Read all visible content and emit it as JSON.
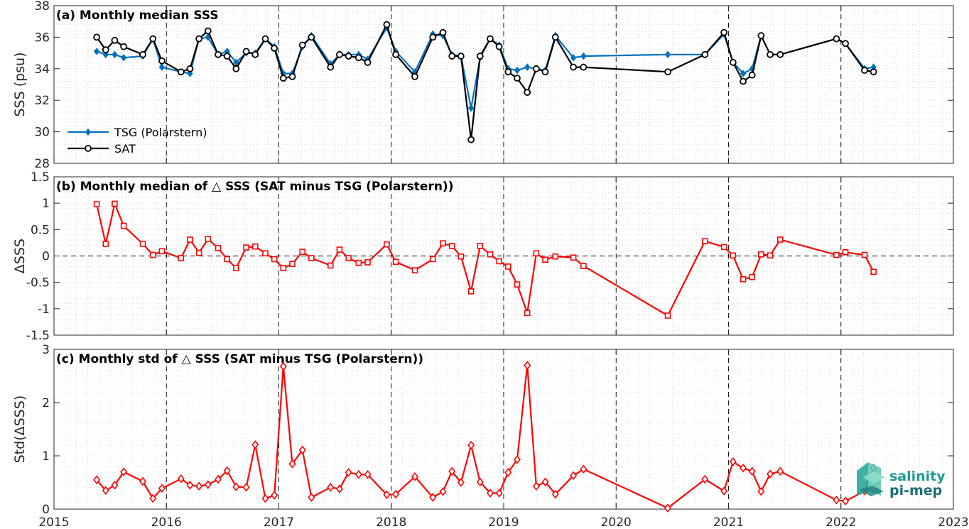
{
  "chart_data": [
    {
      "type": "line",
      "title": "(a) Monthly median SSS",
      "ylabel": "SSS (psu)",
      "xlim": [
        2015,
        2023
      ],
      "ylim": [
        28,
        38
      ],
      "yticks": [
        28,
        30,
        32,
        34,
        36,
        38
      ],
      "grid": "dotted minor",
      "legend_position": "bottom-left",
      "series": [
        {
          "name": "TSG (Polarstern)",
          "color": "#0072BD",
          "marker": "diamond",
          "x": [
            2015.38,
            2015.46,
            2015.54,
            2015.62,
            2015.79,
            2015.88,
            2015.96,
            2016.13,
            2016.21,
            2016.29,
            2016.37,
            2016.46,
            2016.54,
            2016.62,
            2016.71,
            2016.79,
            2016.88,
            2016.96,
            2017.04,
            2017.12,
            2017.21,
            2017.29,
            2017.46,
            2017.54,
            2017.62,
            2017.71,
            2017.79,
            2017.96,
            2018.04,
            2018.21,
            2018.37,
            2018.46,
            2018.54,
            2018.62,
            2018.71,
            2018.79,
            2018.88,
            2018.96,
            2019.04,
            2019.12,
            2019.21,
            2019.29,
            2019.37,
            2019.46,
            2019.62,
            2019.71,
            2020.46,
            2020.79,
            2020.96,
            2021.04,
            2021.13,
            2021.21,
            2021.29,
            2021.37,
            2021.46,
            2021.96,
            2022.04,
            2022.21,
            2022.29
          ],
          "values": [
            35.1,
            34.9,
            34.9,
            34.7,
            34.8,
            35.9,
            34.1,
            33.8,
            33.7,
            35.9,
            36.0,
            34.9,
            35.1,
            34.4,
            35.0,
            35.0,
            35.9,
            35.4,
            33.7,
            33.7,
            35.4,
            36.1,
            34.3,
            34.9,
            34.9,
            34.9,
            34.6,
            36.6,
            35.1,
            33.8,
            36.2,
            36.1,
            34.9,
            34.8,
            31.5,
            34.7,
            35.9,
            35.5,
            34.0,
            33.9,
            34.1,
            34.0,
            33.9,
            36.1,
            34.7,
            34.8,
            34.9,
            34.9,
            36.2,
            34.4,
            33.7,
            34.0,
            36.1,
            34.9,
            34.9,
            35.9,
            35.6,
            34.0,
            34.1
          ]
        },
        {
          "name": "SAT",
          "color": "#000000",
          "marker": "circle",
          "x": [
            2015.38,
            2015.46,
            2015.54,
            2015.62,
            2015.79,
            2015.88,
            2015.96,
            2016.13,
            2016.21,
            2016.29,
            2016.37,
            2016.46,
            2016.54,
            2016.62,
            2016.71,
            2016.79,
            2016.88,
            2016.96,
            2017.04,
            2017.12,
            2017.21,
            2017.29,
            2017.46,
            2017.54,
            2017.62,
            2017.71,
            2017.79,
            2017.96,
            2018.04,
            2018.21,
            2018.37,
            2018.46,
            2018.54,
            2018.62,
            2018.71,
            2018.79,
            2018.88,
            2018.96,
            2019.04,
            2019.12,
            2019.21,
            2019.29,
            2019.37,
            2019.46,
            2019.62,
            2019.71,
            2020.46,
            2020.79,
            2020.96,
            2021.04,
            2021.13,
            2021.21,
            2021.29,
            2021.37,
            2021.46,
            2021.96,
            2022.04,
            2022.21,
            2022.29
          ],
          "values": [
            36.0,
            35.2,
            35.8,
            35.4,
            34.9,
            35.9,
            34.5,
            33.8,
            34.0,
            35.9,
            36.4,
            34.9,
            34.8,
            34.0,
            35.1,
            34.9,
            35.9,
            35.3,
            33.4,
            33.5,
            35.5,
            36.0,
            34.1,
            34.9,
            34.8,
            34.7,
            34.4,
            36.8,
            34.9,
            33.5,
            36.0,
            36.3,
            34.8,
            34.8,
            29.5,
            34.8,
            35.9,
            35.4,
            33.8,
            33.4,
            32.5,
            34.0,
            33.8,
            36.0,
            34.1,
            34.1,
            33.8,
            34.9,
            36.3,
            34.4,
            33.2,
            33.6,
            36.1,
            34.9,
            34.9,
            35.9,
            35.6,
            33.9,
            33.8
          ]
        }
      ]
    },
    {
      "type": "line",
      "title": "(b) Monthly median of △ SSS (SAT minus TSG (Polarstern))",
      "ylabel": "ΔSSS",
      "xlim": [
        2015,
        2023
      ],
      "ylim": [
        -1.5,
        1.5
      ],
      "yticks": [
        -1.5,
        -1,
        -0.5,
        0,
        0.5,
        1,
        1.5
      ],
      "ytick_labels": [
        "-1.5",
        "-1",
        "-0.5",
        "0",
        "0.5",
        "1",
        "1.5"
      ],
      "reference_line": 0,
      "series": [
        {
          "color": "#FF0000",
          "marker": "square",
          "x": [
            2015.38,
            2015.46,
            2015.54,
            2015.62,
            2015.79,
            2015.88,
            2015.96,
            2016.13,
            2016.21,
            2016.29,
            2016.37,
            2016.46,
            2016.54,
            2016.62,
            2016.71,
            2016.79,
            2016.88,
            2016.96,
            2017.04,
            2017.12,
            2017.21,
            2017.29,
            2017.46,
            2017.54,
            2017.62,
            2017.71,
            2017.79,
            2017.96,
            2018.04,
            2018.21,
            2018.37,
            2018.46,
            2018.54,
            2018.62,
            2018.71,
            2018.79,
            2018.88,
            2018.96,
            2019.04,
            2019.12,
            2019.21,
            2019.29,
            2019.37,
            2019.46,
            2019.62,
            2019.71,
            2020.46,
            2020.79,
            2020.96,
            2021.04,
            2021.13,
            2021.21,
            2021.29,
            2021.37,
            2021.46,
            2021.96,
            2022.04,
            2022.21,
            2022.29
          ],
          "values": [
            0.98,
            0.23,
            0.99,
            0.57,
            0.23,
            0.02,
            0.09,
            -0.04,
            0.31,
            0.06,
            0.32,
            0.15,
            -0.06,
            -0.23,
            0.16,
            0.18,
            0.05,
            -0.06,
            -0.23,
            -0.15,
            0.08,
            -0.04,
            -0.18,
            0.12,
            -0.04,
            -0.13,
            -0.12,
            0.22,
            -0.11,
            -0.27,
            -0.06,
            0.24,
            0.19,
            -0.01,
            -0.67,
            0.19,
            0.03,
            -0.1,
            -0.2,
            -0.54,
            -1.08,
            0.05,
            -0.07,
            -0.01,
            -0.03,
            -0.19,
            -1.13,
            0.28,
            0.17,
            0.01,
            -0.44,
            -0.4,
            0.03,
            0.01,
            0.31,
            0.02,
            0.07,
            0.02,
            -0.3
          ]
        }
      ]
    },
    {
      "type": "line",
      "title": "(c) Monthly std of △ SSS (SAT minus TSG (Polarstern))",
      "ylabel": "Std(ΔSSS)",
      "xlabel": "",
      "xlim": [
        2015,
        2023
      ],
      "ylim": [
        0,
        3
      ],
      "yticks": [
        0,
        1,
        2,
        3
      ],
      "xticks": [
        2015,
        2016,
        2017,
        2018,
        2019,
        2020,
        2021,
        2022,
        2023
      ],
      "series": [
        {
          "color": "#FF0000",
          "marker": "diamond",
          "x": [
            2015.38,
            2015.46,
            2015.54,
            2015.62,
            2015.79,
            2015.88,
            2015.96,
            2016.13,
            2016.21,
            2016.29,
            2016.37,
            2016.46,
            2016.54,
            2016.62,
            2016.71,
            2016.79,
            2016.88,
            2016.96,
            2017.04,
            2017.12,
            2017.21,
            2017.29,
            2017.46,
            2017.54,
            2017.62,
            2017.71,
            2017.79,
            2017.96,
            2018.04,
            2018.21,
            2018.37,
            2018.46,
            2018.54,
            2018.62,
            2018.71,
            2018.79,
            2018.88,
            2018.96,
            2019.04,
            2019.12,
            2019.21,
            2019.29,
            2019.37,
            2019.46,
            2019.62,
            2019.71,
            2020.46,
            2020.79,
            2020.96,
            2021.04,
            2021.13,
            2021.21,
            2021.29,
            2021.37,
            2021.46,
            2021.96,
            2022.04,
            2022.21,
            2022.29
          ],
          "values": [
            0.55,
            0.35,
            0.45,
            0.7,
            0.52,
            0.2,
            0.39,
            0.57,
            0.45,
            0.43,
            0.46,
            0.56,
            0.72,
            0.42,
            0.41,
            1.21,
            0.2,
            0.26,
            2.68,
            0.85,
            1.11,
            0.22,
            0.41,
            0.38,
            0.69,
            0.65,
            0.65,
            0.27,
            0.28,
            0.61,
            0.22,
            0.33,
            0.71,
            0.5,
            1.2,
            0.51,
            0.3,
            0.3,
            0.69,
            0.93,
            2.7,
            0.43,
            0.51,
            0.28,
            0.63,
            0.75,
            0.02,
            0.56,
            0.34,
            0.89,
            0.77,
            0.71,
            0.33,
            0.66,
            0.71,
            0.17,
            0.15,
            0.34,
            0.77
          ]
        }
      ]
    }
  ],
  "logo": {
    "line1": "salinity",
    "line2": "pi-mep",
    "color": "#1f9a94"
  }
}
